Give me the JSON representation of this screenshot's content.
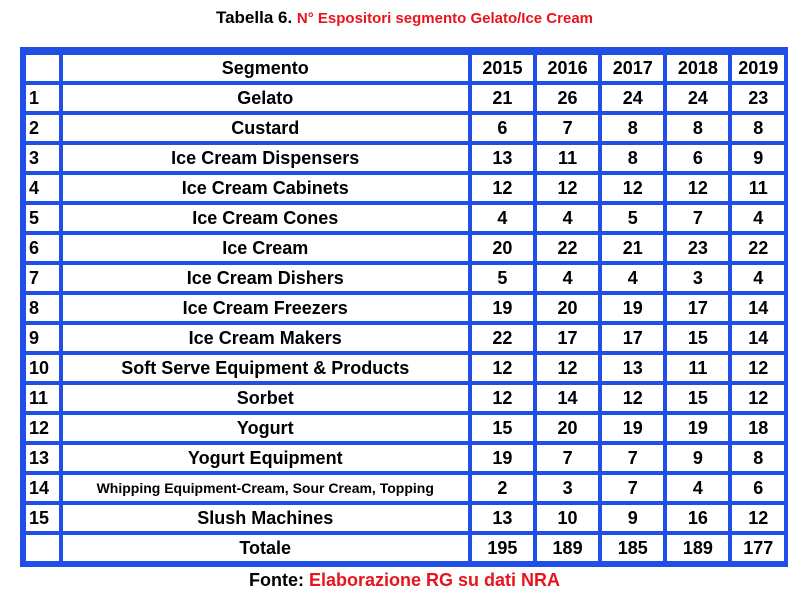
{
  "caption": {
    "prefix": "Tabella 6.",
    "highlight": "N° Espositori segmento Gelato/Ice Cream"
  },
  "table": {
    "header": {
      "index": "",
      "segment": "Segmento",
      "years": [
        "2015",
        "2016",
        "2017",
        "2018",
        "2019"
      ]
    },
    "rows": [
      {
        "index": "1",
        "segment": "Gelato",
        "values": [
          "21",
          "26",
          "24",
          "24",
          "23"
        ]
      },
      {
        "index": "2",
        "segment": "Custard",
        "values": [
          "6",
          "7",
          "8",
          "8",
          "8"
        ]
      },
      {
        "index": "3",
        "segment": "Ice Cream Dispensers",
        "values": [
          "13",
          "11",
          "8",
          "6",
          "9"
        ]
      },
      {
        "index": "4",
        "segment": "Ice Cream Cabinets",
        "values": [
          "12",
          "12",
          "12",
          "12",
          "11"
        ]
      },
      {
        "index": "5",
        "segment": "Ice Cream Cones",
        "values": [
          "4",
          "4",
          "5",
          "7",
          "4"
        ]
      },
      {
        "index": "6",
        "segment": "Ice Cream",
        "values": [
          "20",
          "22",
          "21",
          "23",
          "22"
        ]
      },
      {
        "index": "7",
        "segment": "Ice Cream Dishers",
        "values": [
          "5",
          "4",
          "4",
          "3",
          "4"
        ]
      },
      {
        "index": "8",
        "segment": "Ice Cream Freezers",
        "values": [
          "19",
          "20",
          "19",
          "17",
          "14"
        ]
      },
      {
        "index": "9",
        "segment": "Ice Cream Makers",
        "values": [
          "22",
          "17",
          "17",
          "15",
          "14"
        ]
      },
      {
        "index": "10",
        "segment": "Soft Serve Equipment & Products",
        "values": [
          "12",
          "12",
          "13",
          "11",
          "12"
        ]
      },
      {
        "index": "11",
        "segment": "Sorbet",
        "values": [
          "12",
          "14",
          "12",
          "15",
          "12"
        ]
      },
      {
        "index": "12",
        "segment": "Yogurt",
        "values": [
          "15",
          "20",
          "19",
          "19",
          "18"
        ]
      },
      {
        "index": "13",
        "segment": "Yogurt Equipment",
        "values": [
          "19",
          "7",
          "7",
          "9",
          "8"
        ]
      },
      {
        "index": "14",
        "segment": "Whipping Equipment-Cream, Sour Cream, Topping",
        "values": [
          "2",
          "3",
          "7",
          "4",
          "6"
        ]
      },
      {
        "index": "15",
        "segment": "Slush Machines",
        "values": [
          "13",
          "10",
          "9",
          "16",
          "12"
        ]
      }
    ],
    "total": {
      "index": "",
      "segment": "Totale",
      "values": [
        "195",
        "189",
        "185",
        "189",
        "177"
      ]
    }
  },
  "footer": {
    "prefix": "Fonte:",
    "source": "Elaborazione RG su dati NRA"
  },
  "colors": {
    "frame": "#1f4fe6",
    "highlight": "#e8141c"
  }
}
